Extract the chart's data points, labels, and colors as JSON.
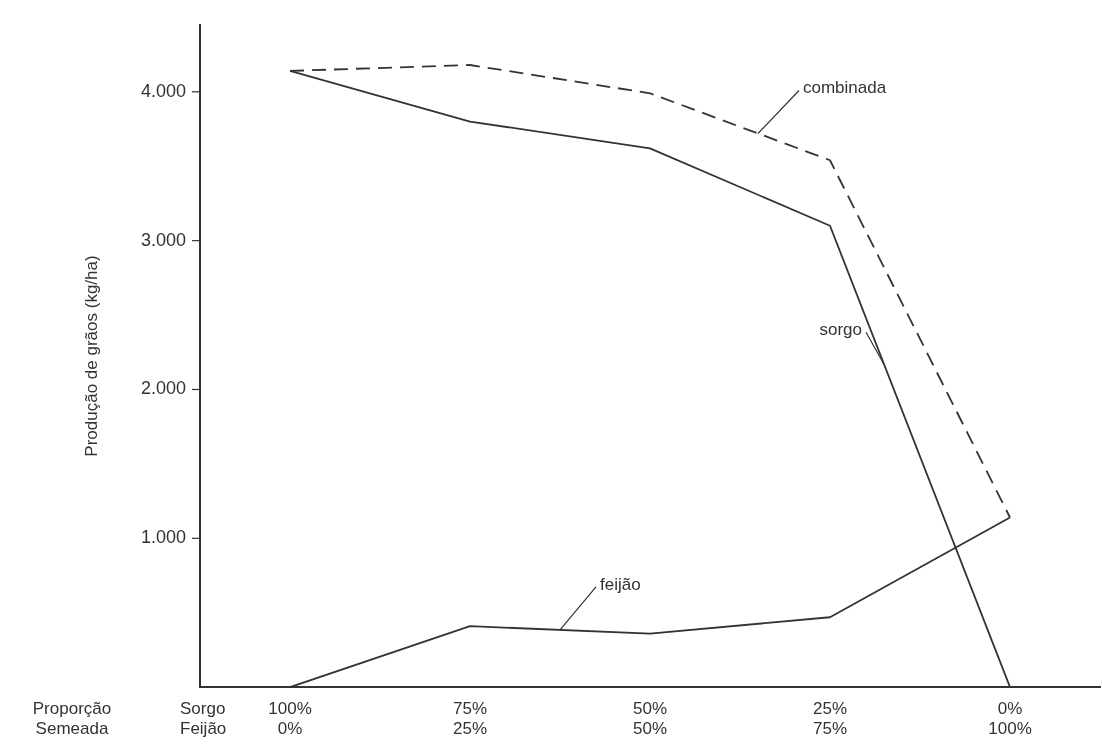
{
  "chart_data": {
    "type": "line",
    "ylabel": "Produção de grãos (kg/ha)",
    "xlabel": "Proporção Semeada",
    "annotations": [
      "Sorgo",
      "Feijão"
    ],
    "categories": [
      "100%\n0%",
      "75%\n25%",
      "50%\n50%",
      "25%\n75%",
      "0%\n100%"
    ],
    "ylim": [
      0,
      4450
    ],
    "yticks": [
      {
        "value": 1000,
        "label": "1.000"
      },
      {
        "value": 2000,
        "label": "2.000"
      },
      {
        "value": 3000,
        "label": "3.000"
      },
      {
        "value": 4000,
        "label": "4.000"
      }
    ],
    "grid": false,
    "legend": false,
    "marker": "none",
    "series": [
      {
        "name": "combinada",
        "color": "#333333",
        "line_style": "dashed",
        "values": [
          4140,
          4180,
          3990,
          3540,
          1140
        ]
      },
      {
        "name": "sorgo",
        "color": "#333333",
        "line_style": "solid",
        "values": [
          4140,
          3800,
          3620,
          3100,
          0
        ]
      },
      {
        "name": "feijão",
        "color": "#333333",
        "line_style": "solid",
        "values": [
          0,
          410,
          360,
          470,
          1140
        ]
      }
    ]
  }
}
